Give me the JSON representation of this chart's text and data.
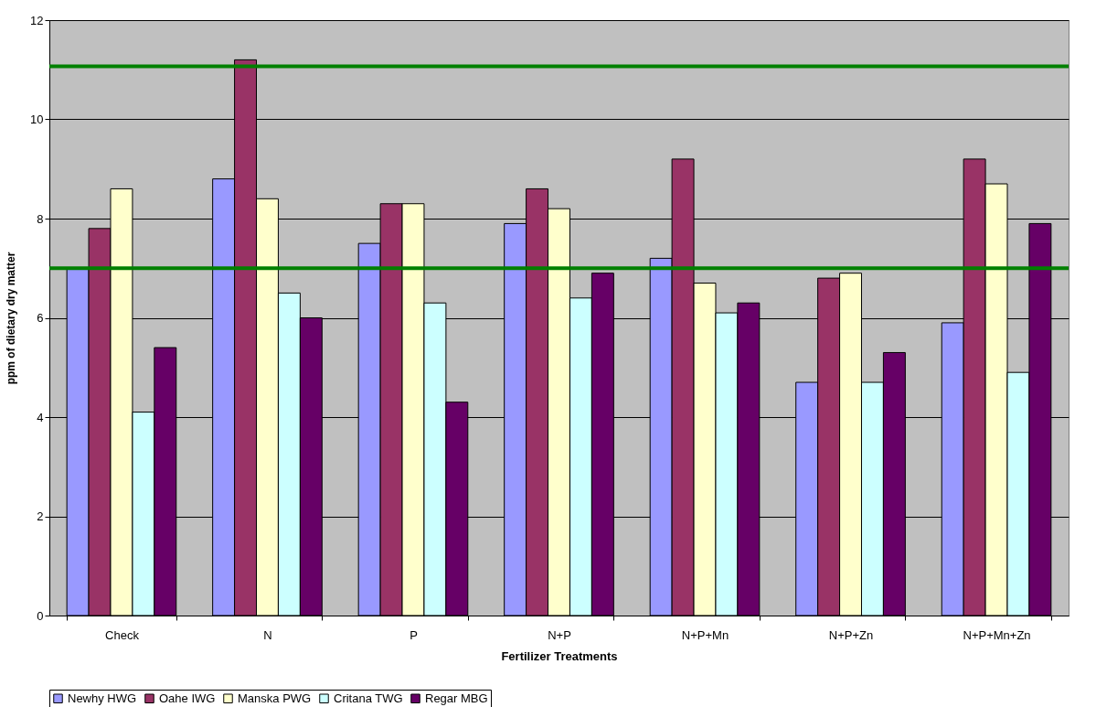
{
  "chart_data": {
    "type": "bar",
    "xlabel": "Fertilizer Treatments",
    "ylabel": "ppm of dietary dry matter",
    "categories": [
      "Check",
      "N",
      "P",
      "N+P",
      "N+P+Mn",
      "N+P+Zn",
      "N+P+Mn+Zn"
    ],
    "series": [
      {
        "name": "Newhy HWG",
        "color": "#9999ff",
        "values": [
          7.0,
          8.8,
          7.5,
          7.9,
          7.2,
          4.7,
          5.9
        ]
      },
      {
        "name": "Oahe IWG",
        "color": "#993366",
        "values": [
          7.8,
          11.2,
          8.3,
          8.6,
          9.2,
          6.8,
          9.2
        ]
      },
      {
        "name": "Manska PWG",
        "color": "#ffffcc",
        "values": [
          8.6,
          8.4,
          8.3,
          8.2,
          6.7,
          6.9,
          8.7
        ]
      },
      {
        "name": "Critana TWG",
        "color": "#ccffff",
        "values": [
          4.1,
          6.5,
          6.3,
          6.4,
          6.1,
          4.7,
          4.9
        ]
      },
      {
        "name": "Regar MBG",
        "color": "#660066",
        "values": [
          5.4,
          6.0,
          4.3,
          6.9,
          6.3,
          5.3,
          7.9
        ]
      }
    ],
    "ylim": [
      0,
      12
    ],
    "yticks": [
      0,
      2,
      4,
      6,
      8,
      10,
      12
    ],
    "grid": "y",
    "legend": "bottom",
    "ref_lines": [
      {
        "axis": "y",
        "value": 7.0,
        "color": "#008000"
      },
      {
        "axis": "y",
        "value": 11.07,
        "color": "#008000"
      }
    ]
  }
}
